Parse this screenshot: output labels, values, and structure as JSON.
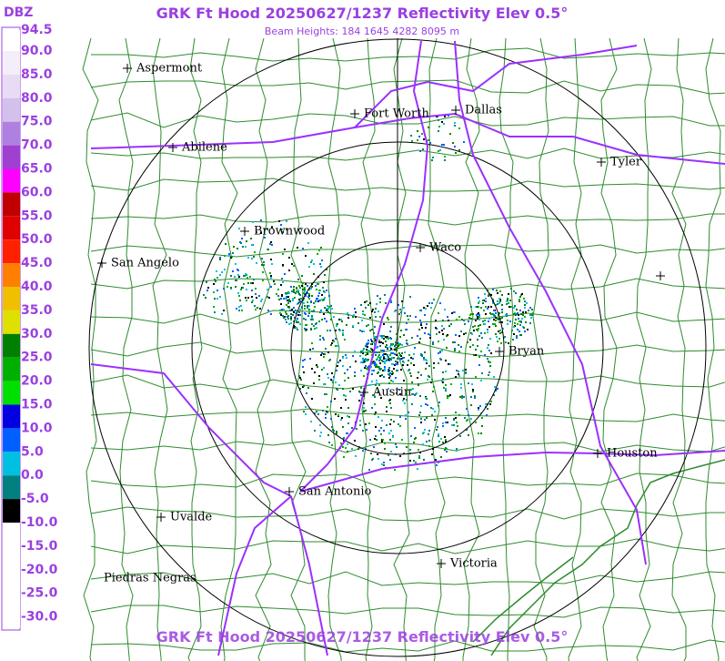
{
  "header": {
    "title": "GRK Ft Hood 20250627/1237 Reflectivity Elev 0.5°",
    "subtitle": "Beam Heights: 184 1645 4282 8095 m"
  },
  "footer": {
    "title": "GRK Ft Hood 20250627/1237 Reflectivity Elev 0.5°"
  },
  "legend": {
    "unit": "DBZ",
    "labels": [
      "94.5",
      "90.0",
      "85.0",
      "80.0",
      "75.0",
      "70.0",
      "65.0",
      "60.0",
      "55.0",
      "50.0",
      "45.0",
      "40.0",
      "35.0",
      "30.0",
      "25.0",
      "20.0",
      "15.0",
      "10.0",
      "5.0",
      "0.0",
      "-5.0",
      "-10.0",
      "-15.0",
      "-20.0",
      "-25.0",
      "-30.0"
    ],
    "colors": [
      "#ffffff",
      "#f4eefa",
      "#e8dcf4",
      "#d4c0ec",
      "#b080e0",
      "#a040d0",
      "#ff00ff",
      "#c00000",
      "#e00000",
      "#ff2000",
      "#ff8000",
      "#f0c000",
      "#e0e000",
      "#008000",
      "#00b000",
      "#00e000",
      "#0000e0",
      "#0060ff",
      "#00c0e0",
      "#008080",
      "#000000",
      "#ffffff",
      "#ffffff",
      "#ffffff",
      "#ffffff",
      "#ffffff"
    ]
  },
  "map": {
    "cities": [
      "Aspermont",
      "Abilene",
      "Fort Worth",
      "Dallas",
      "Tyler",
      "Brownwood",
      "San Angelo",
      "Waco",
      "Bryan",
      "Austin",
      "Houston",
      "San Antonio",
      "Uvalde",
      "Victoria",
      "Piedras Negras"
    ]
  }
}
